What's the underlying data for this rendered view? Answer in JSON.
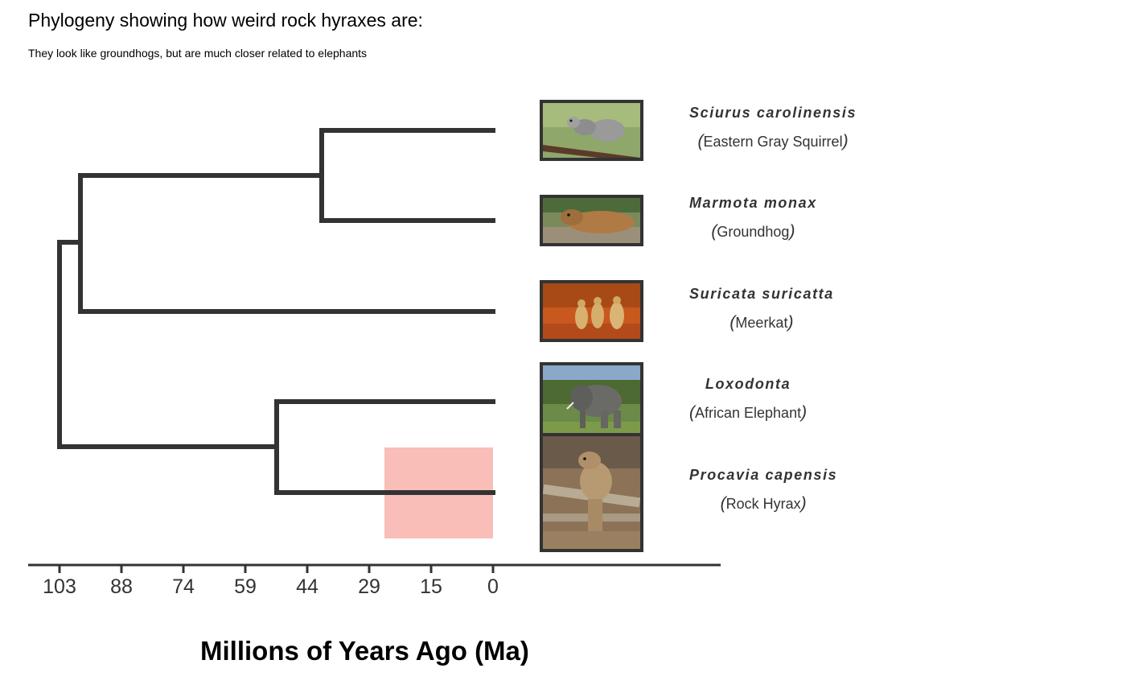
{
  "header": {
    "title": "Phylogeny showing how weird rock hyraxes are:",
    "subtitle": "They look like groundhogs, but are much closer related to elephants"
  },
  "axis": {
    "title": "Millions of Years Ago (Ma)",
    "ticks": [
      "103",
      "88",
      "74",
      "59",
      "44",
      "29",
      "15",
      "0"
    ]
  },
  "taxa": [
    {
      "scientific": "Sciurus carolinensis",
      "common": "Eastern Gray Squirrel",
      "image": "squirrel-photo"
    },
    {
      "scientific": "Marmota monax",
      "common": "Groundhog",
      "image": "groundhog-photo"
    },
    {
      "scientific": "Suricata suricatta",
      "common": "Meerkat",
      "image": "meerkat-photo"
    },
    {
      "scientific": "Loxodonta",
      "common": "African Elephant",
      "image": "elephant-photo"
    },
    {
      "scientific": "Procavia capensis",
      "common": "Rock Hyrax",
      "image": "hyrax-photo"
    }
  ],
  "highlight": {
    "color": "#f8a29a",
    "ma_from": 25,
    "ma_to": 0,
    "taxon": "Procavia capensis"
  },
  "colors": {
    "branch": "#333333",
    "axis": "#333333"
  },
  "tree": {
    "nodes": [
      {
        "id": "root",
        "age_ma": 103
      },
      {
        "id": "sciurid-meerkat",
        "age_ma": 98
      },
      {
        "id": "sciuridae",
        "age_ma": 41
      },
      {
        "id": "paenungulata",
        "age_ma": 52
      }
    ]
  }
}
